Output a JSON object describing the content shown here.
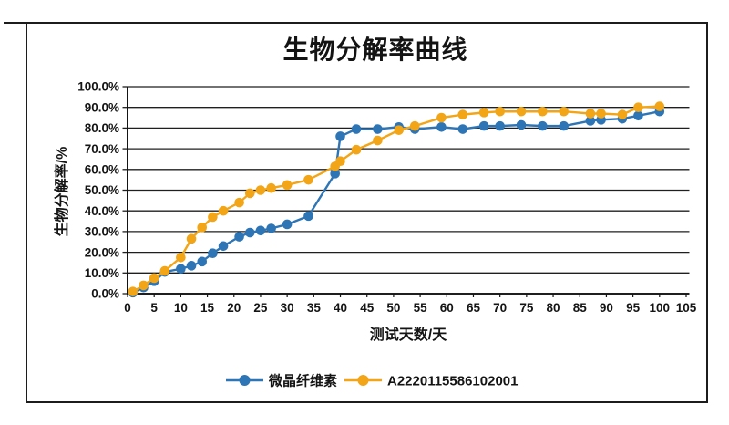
{
  "chart_data": {
    "type": "line",
    "title": "生物分解率曲线",
    "xlabel": "测试天数/天",
    "ylabel": "生物分解率/%",
    "xlim": [
      0,
      105
    ],
    "ylim": [
      0,
      100
    ],
    "xtick_step": 5,
    "ytick_step": 10,
    "ytick_format": "percent_one_decimal",
    "grid": "horizontal",
    "legend_position": "bottom",
    "x": [
      1,
      3,
      5,
      7,
      10,
      12,
      14,
      16,
      18,
      21,
      23,
      25,
      27,
      30,
      34,
      39,
      40,
      43,
      47,
      51,
      54,
      59,
      63,
      67,
      70,
      74,
      78,
      82,
      87,
      89,
      93,
      96,
      100
    ],
    "series": [
      {
        "name": "微晶纤维素",
        "color": "#2E75B6",
        "values": [
          0.5,
          3,
          6,
          10.5,
          12,
          13.5,
          15.5,
          19.5,
          23,
          27.5,
          29.5,
          30.5,
          31.5,
          33.5,
          37.5,
          58,
          76,
          79.5,
          79.5,
          80.5,
          79.5,
          80.5,
          79.5,
          81,
          81,
          81.5,
          81,
          81,
          83.5,
          84,
          84.5,
          86,
          88
        ]
      },
      {
        "name": "A2220115586102001",
        "color": "#F2A516",
        "values": [
          1,
          4,
          7.5,
          11,
          17.5,
          26.5,
          32,
          37,
          40,
          44,
          48.5,
          50,
          51,
          52.5,
          55,
          61.5,
          64,
          69.5,
          74,
          79,
          81,
          85,
          86.5,
          87.5,
          88,
          88,
          88,
          88,
          87,
          87,
          86.5,
          90,
          90.5
        ]
      }
    ],
    "x_tick_labels": [
      "0",
      "5",
      "10",
      "15",
      "20",
      "25",
      "30",
      "35",
      "40",
      "45",
      "50",
      "55",
      "60",
      "65",
      "70",
      "75",
      "80",
      "85",
      "90",
      "95",
      "100",
      "105"
    ],
    "y_tick_labels": [
      "0.0%",
      "10.0%",
      "20.0%",
      "30.0%",
      "40.0%",
      "50.0%",
      "60.0%",
      "70.0%",
      "80.0%",
      "90.0%",
      "100.0%"
    ]
  },
  "style_colors": {
    "grid": "#1f1f1f",
    "axis": "#141414",
    "frame": "#1c1c1c"
  }
}
